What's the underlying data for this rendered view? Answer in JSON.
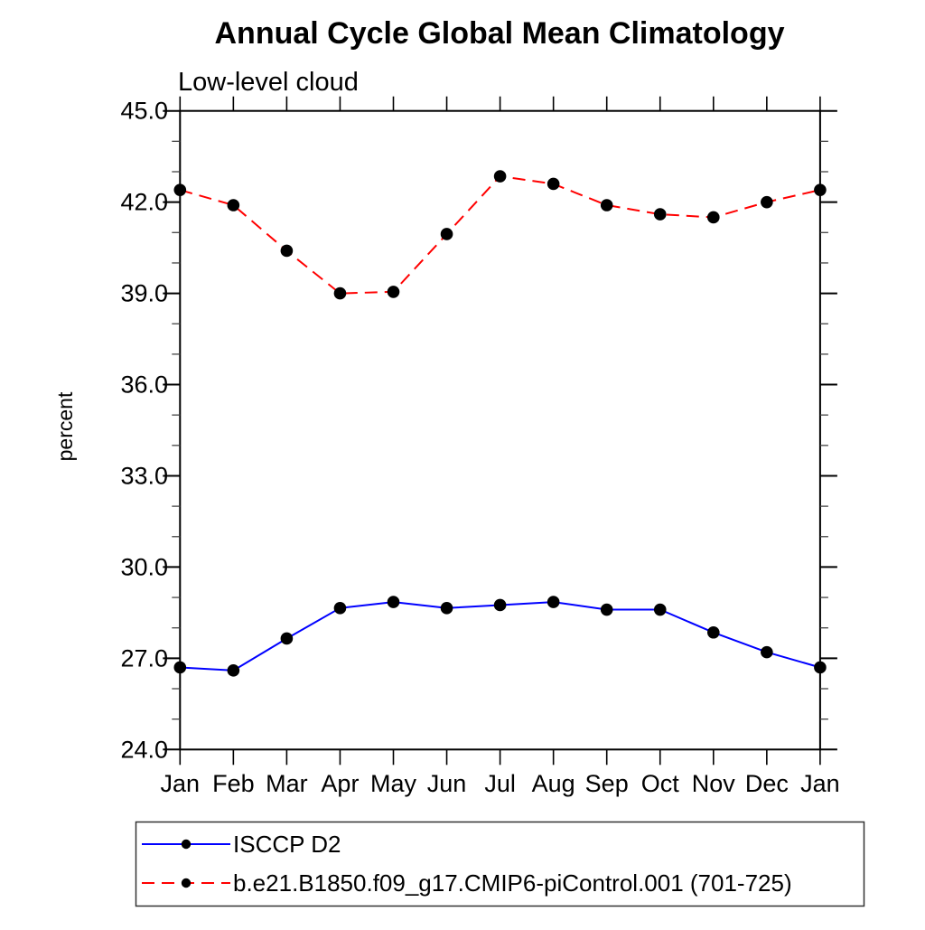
{
  "chart_data": {
    "type": "line",
    "title": "Annual Cycle Global Mean Climatology",
    "subtitle": "Low-level cloud",
    "ylabel": "percent",
    "x_categories": [
      "Jan",
      "Feb",
      "Mar",
      "Apr",
      "May",
      "Jun",
      "Jul",
      "Aug",
      "Sep",
      "Oct",
      "Nov",
      "Dec",
      "Jan"
    ],
    "ylim": [
      24.0,
      45.0
    ],
    "ytick_major_interval": 3.0,
    "ytick_minor_interval": 1.0,
    "ytick_labels": [
      "24.0",
      "27.0",
      "30.0",
      "33.0",
      "36.0",
      "39.0",
      "42.0",
      "45.0"
    ],
    "grid": false,
    "legend_position": "bottom-left-box",
    "colors": {
      "axis": "#000000",
      "minor_tick": "#444444",
      "marker": "#000000",
      "legend_border": "#333333"
    },
    "series": [
      {
        "name": "ISCCP D2",
        "color": "#0000ff",
        "style": "solid",
        "marker": "circle",
        "values": [
          26.7,
          26.6,
          27.65,
          28.65,
          28.85,
          28.65,
          28.75,
          28.85,
          28.6,
          28.6,
          27.85,
          27.2,
          26.7
        ]
      },
      {
        "name": "b.e21.B1850.f09_g17.CMIP6-piControl.001 (701-725)",
        "color": "#ff0000",
        "style": "dashed",
        "marker": "circle",
        "values": [
          42.4,
          41.9,
          40.4,
          39.0,
          39.05,
          40.95,
          42.85,
          42.6,
          41.9,
          41.6,
          41.5,
          42.0,
          42.4
        ]
      }
    ]
  }
}
